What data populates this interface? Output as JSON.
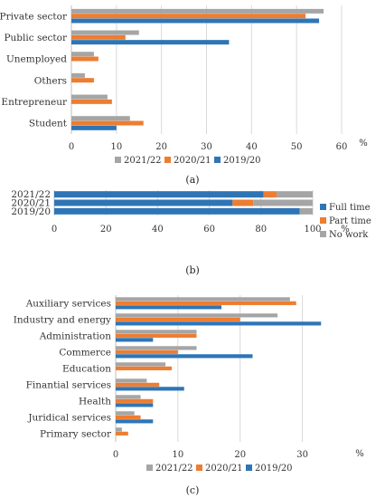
{
  "colors": {
    "y2021_22": "#a5a5a5",
    "y2020_21": "#ed7d31",
    "y2019_20": "#2e75b6",
    "full_time": "#2e75b6",
    "part_time": "#ed7d31",
    "no_work": "#a5a5a5"
  },
  "chart_data": [
    {
      "type": "bar",
      "orientation": "horizontal",
      "panel_label": "(a)",
      "categories": [
        "Private sector",
        "Public sector",
        "Unemployed",
        "Others",
        "Entrepreneur",
        "Student"
      ],
      "series": [
        {
          "name": "2021/22",
          "values": [
            56,
            15,
            5,
            3,
            8,
            13
          ]
        },
        {
          "name": "2020/21",
          "values": [
            52,
            12,
            6,
            5,
            9,
            16
          ]
        },
        {
          "name": "2019/20",
          "values": [
            55,
            35,
            0,
            0,
            0,
            10
          ]
        }
      ],
      "xlim": [
        0,
        60
      ],
      "xticks": [
        0,
        10,
        20,
        30,
        40,
        50,
        60
      ],
      "unit": "%",
      "legend_order": [
        "2021/22",
        "2020/21",
        "2019/20"
      ],
      "legend_position": "bottom",
      "grid": true
    },
    {
      "type": "bar",
      "orientation": "horizontal",
      "stacked": true,
      "panel_label": "(b)",
      "categories": [
        "2021/22",
        "2020/21",
        "2019/20"
      ],
      "series": [
        {
          "name": "Full time",
          "values": [
            81,
            69,
            95
          ]
        },
        {
          "name": "Part time",
          "values": [
            5,
            8,
            0
          ]
        },
        {
          "name": "No work",
          "values": [
            14,
            23,
            5
          ]
        }
      ],
      "xlim": [
        0,
        100
      ],
      "xticks": [
        0,
        20,
        40,
        60,
        80,
        100
      ],
      "unit": "%",
      "legend_position": "right",
      "grid": true
    },
    {
      "type": "bar",
      "orientation": "horizontal",
      "panel_label": "(c)",
      "categories": [
        "Auxiliary services",
        "Industry and energy",
        "Administration",
        "Commerce",
        "Education",
        "Finantial services",
        "Health",
        "Juridical services",
        "Primary sector"
      ],
      "series": [
        {
          "name": "2021/22",
          "values": [
            28,
            26,
            13,
            13,
            8,
            5,
            4,
            3,
            1
          ]
        },
        {
          "name": "2020/21",
          "values": [
            29,
            20,
            13,
            10,
            9,
            7,
            6,
            4,
            2
          ]
        },
        {
          "name": "2019/20",
          "values": [
            17,
            33,
            6,
            22,
            0,
            11,
            6,
            6,
            0
          ]
        }
      ],
      "xlim": [
        0,
        35
      ],
      "xticks": [
        0,
        10,
        20,
        30
      ],
      "unit": "%",
      "legend_order": [
        "2021/22",
        "2020/21",
        "2019/20"
      ],
      "legend_position": "bottom",
      "grid": true
    }
  ]
}
